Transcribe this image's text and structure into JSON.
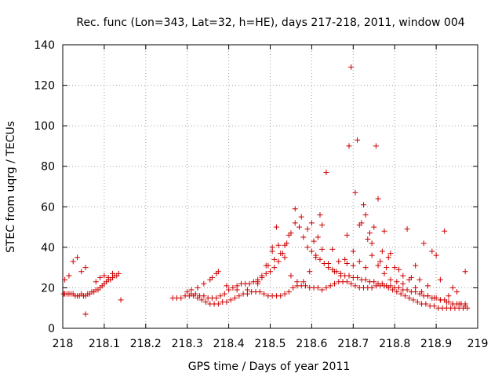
{
  "chart_data": {
    "type": "scatter",
    "title": "Rec. func (Lon=343, Lat=32, h=HE), days 217-218, 2011, window 004",
    "xlabel": "GPS time / Days of year 2011",
    "ylabel": "STEC from uqrg / TECUs",
    "xlim": [
      218,
      219
    ],
    "ylim": [
      0,
      140
    ],
    "xticks": [
      "218",
      "218.1",
      "218.2",
      "218.3",
      "218.4",
      "218.5",
      "218.6",
      "218.7",
      "218.8",
      "218.9",
      "219"
    ],
    "yticks": [
      "0",
      "20",
      "40",
      "60",
      "80",
      "100",
      "120",
      "140"
    ],
    "grid": true,
    "marker": "plus",
    "color": "#cc0000",
    "series": [
      {
        "x": [
          218.002,
          218.005,
          218.01,
          218.015,
          218.02,
          218.025,
          218.03,
          218.035,
          218.04,
          218.045,
          218.05,
          218.055,
          218.06,
          218.065,
          218.07,
          218.075,
          218.08,
          218.085,
          218.09,
          218.095,
          218.1,
          218.105,
          218.11,
          218.115,
          218.12,
          218.125,
          218.13,
          218.135,
          218.005,
          218.015,
          218.025,
          218.035,
          218.045,
          218.055,
          218.08,
          218.09,
          218.1,
          218.11,
          218.12,
          218.055,
          218.14
        ],
        "y": [
          17,
          17,
          17,
          17,
          17,
          17,
          16,
          16,
          16,
          17,
          16,
          16,
          17,
          17,
          18,
          18,
          19,
          19,
          20,
          21,
          22,
          23,
          24,
          24,
          25,
          26,
          26,
          27,
          24,
          26,
          33,
          35,
          28,
          30,
          23,
          25,
          26,
          25,
          27,
          7,
          14
        ]
      },
      {
        "x": [
          218.265,
          218.275,
          218.285,
          218.295,
          218.305,
          218.315,
          218.325,
          218.335,
          218.345,
          218.355,
          218.365,
          218.375,
          218.385,
          218.395,
          218.405,
          218.415,
          218.425,
          218.435,
          218.445,
          218.455,
          218.465,
          218.475,
          218.485,
          218.495,
          218.505,
          218.515,
          218.525,
          218.535,
          218.545,
          218.555,
          218.565,
          218.575,
          218.585,
          218.595,
          218.605,
          218.615,
          218.625,
          218.635,
          218.645,
          218.655,
          218.665,
          218.675,
          218.685,
          218.695,
          218.705,
          218.715,
          218.725,
          218.735,
          218.745,
          218.755,
          218.765,
          218.775,
          218.785,
          218.795,
          218.805,
          218.815,
          218.825,
          218.835,
          218.845,
          218.855,
          218.865,
          218.875,
          218.885,
          218.895,
          218.905,
          218.915,
          218.925,
          218.935,
          218.945,
          218.955,
          218.965,
          218.975
        ],
        "y": [
          15,
          15,
          15,
          16,
          16,
          16,
          15,
          14,
          13,
          12,
          12,
          12,
          13,
          13,
          14,
          15,
          16,
          17,
          17,
          18,
          18,
          18,
          17,
          16,
          16,
          16,
          16,
          17,
          18,
          20,
          21,
          21,
          21,
          20,
          20,
          20,
          19,
          20,
          21,
          22,
          23,
          23,
          23,
          22,
          21,
          20,
          20,
          20,
          20,
          21,
          21,
          21,
          20,
          19,
          18,
          17,
          16,
          15,
          14,
          13,
          12,
          12,
          11,
          11,
          10,
          10,
          10,
          10,
          10,
          10,
          10,
          10
        ]
      },
      {
        "x": [
          218.3,
          218.31,
          218.32,
          218.33,
          218.34,
          218.35,
          218.36,
          218.37,
          218.38,
          218.39,
          218.4,
          218.41,
          218.42,
          218.43,
          218.44,
          218.45,
          218.46,
          218.47,
          218.48,
          218.49,
          218.5,
          218.51,
          218.52,
          218.53,
          218.54,
          218.55,
          218.56,
          218.57,
          218.58,
          218.59,
          218.6,
          218.61,
          218.62,
          218.63,
          218.64,
          218.65,
          218.66,
          218.67,
          218.68,
          218.69,
          218.7,
          218.71,
          218.72,
          218.73,
          218.74,
          218.75,
          218.76,
          218.77,
          218.78,
          218.79,
          218.8,
          218.81,
          218.82,
          218.83,
          218.84,
          218.85,
          218.86,
          218.87,
          218.88,
          218.89,
          218.9,
          218.91,
          218.92,
          218.93,
          218.94,
          218.95,
          218.96,
          218.97
        ],
        "y": [
          18,
          17,
          17,
          16,
          16,
          15,
          15,
          15,
          16,
          17,
          19,
          20,
          21,
          22,
          22,
          22,
          23,
          24,
          25,
          27,
          28,
          30,
          33,
          37,
          42,
          47,
          52,
          50,
          45,
          40,
          38,
          36,
          34,
          32,
          30,
          29,
          28,
          27,
          26,
          26,
          25,
          25,
          24,
          24,
          23,
          23,
          22,
          22,
          21,
          21,
          20,
          20,
          19,
          19,
          18,
          18,
          17,
          16,
          16,
          15,
          15,
          14,
          14,
          13,
          12,
          12,
          12,
          11
        ]
      },
      {
        "x": [
          218.31,
          218.325,
          218.34,
          218.355,
          218.37,
          218.395,
          218.42,
          218.445,
          218.47,
          218.49,
          218.505,
          218.52,
          218.535,
          218.55,
          218.565,
          218.58,
          218.595,
          218.61,
          218.625,
          218.64,
          218.655,
          218.67,
          218.685,
          218.7,
          218.715,
          218.73,
          218.745,
          218.76,
          218.775,
          218.79,
          218.805,
          218.82,
          218.835,
          218.85,
          218.865,
          218.88,
          218.895,
          218.91,
          218.925,
          218.94,
          218.955,
          218.97
        ],
        "y": [
          19,
          20,
          22,
          24,
          27,
          21,
          19,
          19,
          22,
          31,
          38,
          41,
          35,
          26,
          23,
          23,
          28,
          35,
          39,
          32,
          28,
          26,
          32,
          38,
          33,
          30,
          36,
          31,
          27,
          24,
          23,
          22,
          24,
          20,
          18,
          16,
          15,
          14,
          13,
          12,
          12,
          12
        ]
      },
      {
        "x": [
          218.36,
          218.375,
          218.47,
          218.48,
          218.495,
          218.505,
          218.51,
          218.515,
          218.525,
          218.535,
          218.545,
          218.56,
          218.575,
          218.59,
          218.6,
          218.605,
          218.615,
          218.62,
          218.625,
          218.635,
          218.65,
          218.665,
          218.68,
          218.685,
          218.69,
          218.695,
          218.7,
          218.705,
          218.71,
          218.715,
          218.72,
          218.725,
          218.73,
          218.735,
          218.74,
          218.745,
          218.75,
          218.755,
          218.76,
          218.765,
          218.77,
          218.775,
          218.78,
          218.785,
          218.79,
          218.8,
          218.81,
          218.82,
          218.83,
          218.84,
          218.85,
          218.86,
          218.87,
          218.88,
          218.89,
          218.9,
          218.91,
          218.92,
          218.93,
          218.94,
          218.95,
          218.96,
          218.97
        ],
        "y": [
          25,
          28,
          23,
          26,
          31,
          40,
          34,
          50,
          37,
          41,
          46,
          59,
          55,
          49,
          52,
          43,
          45,
          56,
          51,
          77,
          39,
          33,
          34,
          46,
          90,
          129,
          31,
          67,
          93,
          51,
          52,
          61,
          56,
          44,
          47,
          42,
          50,
          90,
          64,
          33,
          38,
          48,
          30,
          35,
          37,
          30,
          29,
          26,
          49,
          25,
          31,
          24,
          42,
          21,
          38,
          36,
          24,
          48,
          16,
          20,
          18,
          12,
          28
        ]
      }
    ]
  }
}
